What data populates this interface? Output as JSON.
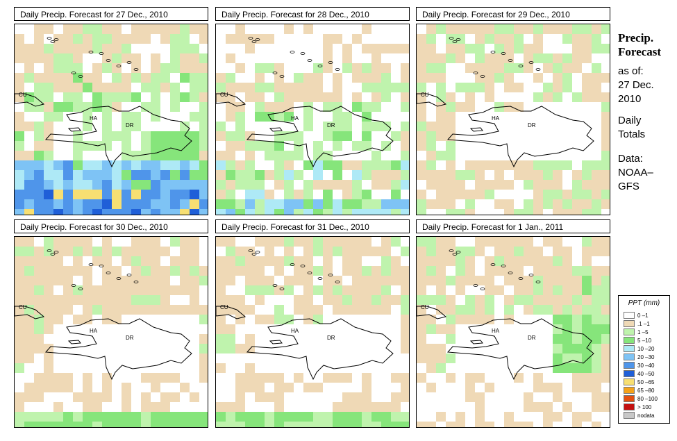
{
  "panels": [
    {
      "title": "Daily Precip. Forecast for  27 Dec., 2010",
      "scenario": "d27"
    },
    {
      "title": "Daily Precip. Forecast for  28 Dec., 2010",
      "scenario": "d28"
    },
    {
      "title": "Daily Precip. Forecast for  29 Dec., 2010",
      "scenario": "d29"
    },
    {
      "title": "Daily Precip. Forecast for  30 Dec., 2010",
      "scenario": "d30"
    },
    {
      "title": "Daily Precip. Forecast for  31 Dec., 2010",
      "scenario": "d31"
    },
    {
      "title": "Daily Precip. Forecast for  1 Jan., 2011",
      "scenario": "j01"
    }
  ],
  "map_labels": {
    "cuba": "CU",
    "haiti": "HA",
    "dominican_republic": "DR"
  },
  "sidebar": {
    "heading_line1": "Precip.",
    "heading_line2": "Forecast",
    "asof_line1": "as of:",
    "asof_line2": "27 Dec.",
    "asof_line3": "2010",
    "totals_line1": "Daily",
    "totals_line2": "Totals",
    "data_line1": "Data:",
    "data_line2": "NOAA–",
    "data_line3": "GFS"
  },
  "legend": {
    "title": "PPT (mm)",
    "items": [
      {
        "label": "0 –1",
        "color": "#ffffff"
      },
      {
        "label": ".1 –1",
        "color": "#efd9b6"
      },
      {
        "label": "1 –5",
        "color": "#bff3ad"
      },
      {
        "label": "5 –10",
        "color": "#86e57b"
      },
      {
        "label": "10 –20",
        "color": "#aee9f6"
      },
      {
        "label": "20 –30",
        "color": "#7ec3f5"
      },
      {
        "label": "30 –40",
        "color": "#4f95ea"
      },
      {
        "label": "40 –50",
        "color": "#1f5fd8"
      },
      {
        "label": "50 –65",
        "color": "#f7df72"
      },
      {
        "label": "65 –80",
        "color": "#f4a21a"
      },
      {
        "label": "80 –100",
        "color": "#e45010"
      },
      {
        "label": "> 100",
        "color": "#c41010"
      },
      {
        "label": "nodata",
        "color": "#c8c8c8"
      }
    ]
  }
}
